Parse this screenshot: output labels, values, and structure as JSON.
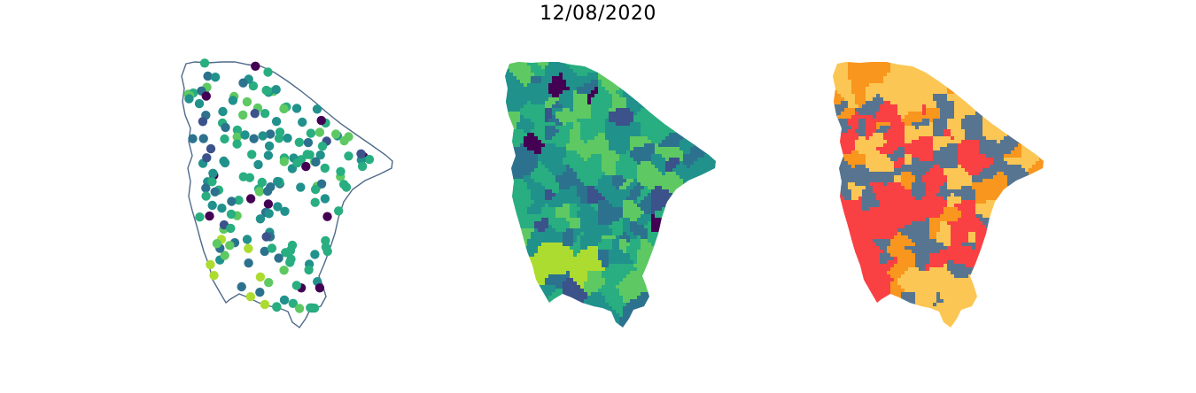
{
  "figure": {
    "title": "12/08/2020"
  },
  "palette": {
    "viridis": [
      "#440154",
      "#3b528b",
      "#2c728e",
      "#21918c",
      "#28ae80",
      "#5ec962",
      "#addc30",
      "#fde725"
    ],
    "outline": "#4f6a8a",
    "categories": [
      "#fbc653",
      "#f8961e",
      "#f94144",
      "#577590"
    ]
  },
  "panels": [
    {
      "name": "points-panel",
      "kind": "stations-scatter-on-outline"
    },
    {
      "name": "choropleth-continuous-panel",
      "kind": "municipalities-viridis"
    },
    {
      "name": "choropleth-categorical-panel",
      "kind": "municipalities-four-classes"
    }
  ]
}
